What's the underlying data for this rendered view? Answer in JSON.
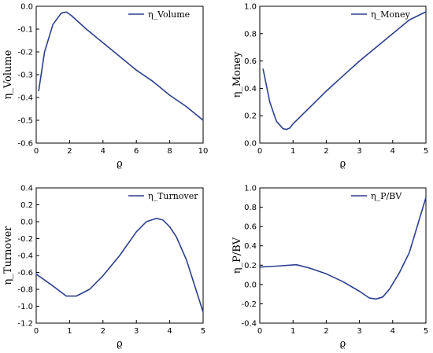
{
  "colors": {
    "line": "#2b3f8f",
    "axis": "#000000",
    "background": "#ffffff"
  },
  "chart_data": [
    {
      "type": "line",
      "xlabel": "ϱ",
      "ylabel": "η_Volume",
      "xlim": [
        0,
        10
      ],
      "ylim": [
        -0.6,
        0.0
      ],
      "xticks": [
        "0",
        "2",
        "4",
        "6",
        "8",
        "10"
      ],
      "yticks": [
        "0.0",
        "-0.1",
        "-0.2",
        "-0.3",
        "-0.4",
        "-0.5",
        "-0.6"
      ],
      "legend_position": "top-right",
      "series": [
        {
          "name": "η_Volume",
          "x": [
            0.15,
            0.5,
            1.0,
            1.5,
            1.8,
            2.1,
            3,
            4,
            5,
            6,
            7,
            8,
            9,
            10
          ],
          "y": [
            -0.37,
            -0.2,
            -0.08,
            -0.03,
            -0.025,
            -0.04,
            -0.1,
            -0.16,
            -0.22,
            -0.28,
            -0.33,
            -0.39,
            -0.44,
            -0.5
          ]
        }
      ]
    },
    {
      "type": "line",
      "xlabel": "ϱ",
      "ylabel": "η_Money",
      "xlim": [
        0,
        5
      ],
      "ylim": [
        0.0,
        1.0
      ],
      "xticks": [
        "0",
        "1",
        "2",
        "3",
        "4",
        "5"
      ],
      "yticks": [
        "1.0",
        "0.8",
        "0.6",
        "0.4",
        "0.2",
        "0.0"
      ],
      "legend_position": "top-right",
      "series": [
        {
          "name": "η_Money",
          "x": [
            0.1,
            0.3,
            0.5,
            0.7,
            0.8,
            0.9,
            1.0,
            1.5,
            2,
            2.5,
            3,
            3.5,
            4,
            4.5,
            5
          ],
          "y": [
            0.54,
            0.3,
            0.16,
            0.105,
            0.1,
            0.11,
            0.14,
            0.26,
            0.38,
            0.49,
            0.6,
            0.7,
            0.8,
            0.9,
            0.96
          ]
        }
      ]
    },
    {
      "type": "line",
      "xlabel": "ϱ",
      "ylabel": "η_Turnover",
      "xlim": [
        0,
        5
      ],
      "ylim": [
        -1.2,
        0.4
      ],
      "xticks": [
        "0",
        "1",
        "2",
        "3",
        "4",
        "5"
      ],
      "yticks": [
        "0.4",
        "0.2",
        "0.0",
        "-0.2",
        "-0.4",
        "-0.6",
        "-0.8",
        "-1.0",
        "-1.2"
      ],
      "legend_position": "top-right",
      "series": [
        {
          "name": "η_Turnover",
          "x": [
            0,
            0.5,
            0.9,
            1.2,
            1.6,
            2.0,
            2.5,
            3.0,
            3.3,
            3.6,
            3.8,
            4.0,
            4.2,
            4.5,
            5.0
          ],
          "y": [
            -0.62,
            -0.76,
            -0.88,
            -0.88,
            -0.8,
            -0.64,
            -0.4,
            -0.12,
            0.0,
            0.04,
            0.02,
            -0.06,
            -0.18,
            -0.45,
            -1.07
          ]
        }
      ]
    },
    {
      "type": "line",
      "xlabel": "ϱ",
      "ylabel": "η_P/BV",
      "xlim": [
        0,
        5
      ],
      "ylim": [
        -0.4,
        1.0
      ],
      "xticks": [
        "0",
        "1",
        "2",
        "3",
        "4",
        "5"
      ],
      "yticks": [
        "1.0",
        "0.8",
        "0.6",
        "0.4",
        "0.2",
        "0.0",
        "-0.2",
        "-0.4"
      ],
      "legend_position": "top-right",
      "series": [
        {
          "name": "η_P/BV",
          "x": [
            0,
            0.5,
            1.1,
            1.5,
            2.0,
            2.5,
            3.0,
            3.3,
            3.5,
            3.7,
            3.9,
            4.2,
            4.5,
            5.0
          ],
          "y": [
            0.18,
            0.19,
            0.205,
            0.17,
            0.11,
            0.03,
            -0.07,
            -0.14,
            -0.15,
            -0.13,
            -0.05,
            0.12,
            0.33,
            0.9
          ]
        }
      ]
    }
  ]
}
